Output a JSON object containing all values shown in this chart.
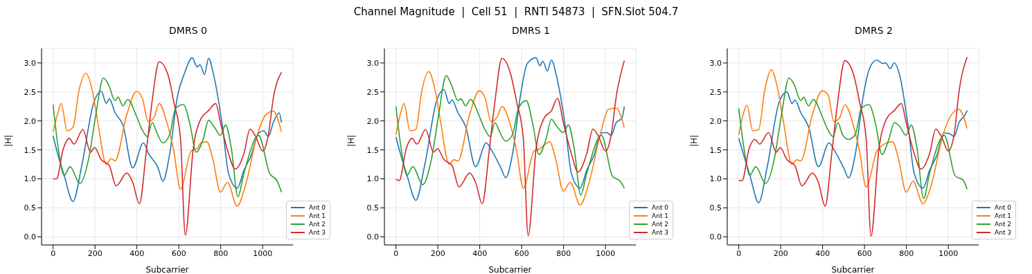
{
  "chart_data": [
    {
      "type": "line",
      "title": "DMRS 0",
      "annotations": [
        "Channel Magnitude  |  Cell 51  |  RNTI 54873  |  SFN.Slot 504.7"
      ],
      "xlabel": "Subcarrier",
      "ylabel": "|H|",
      "xlim": [
        -55,
        1145
      ],
      "xticks": [
        0,
        200,
        400,
        600,
        800,
        1000
      ],
      "ylim": [
        -0.14,
        3.25
      ],
      "yticks": [
        {
          "value": 0,
          "label": "0.0"
        },
        {
          "value": 0.5,
          "label": "0.5"
        },
        {
          "value": 1,
          "label": "1.0"
        },
        {
          "value": 1.5,
          "label": "1.5"
        },
        {
          "value": 2,
          "label": "2.0"
        },
        {
          "value": 2.5,
          "label": "2.5"
        },
        {
          "value": 3,
          "label": "3.0"
        }
      ],
      "grid": true,
      "legend": "bottom right",
      "series": [
        {
          "name": "Ant 0",
          "color": "#1f77b4",
          "x": [
            0,
            25,
            53,
            95,
            137,
            193,
            230,
            254,
            268,
            296,
            333,
            380,
            431,
            455,
            501,
            524,
            557,
            594,
            627,
            664,
            687,
            701,
            723,
            742,
            767,
            809,
            837,
            879,
            911,
            944,
            981,
            1005,
            1028,
            1051,
            1079,
            1090
          ],
          "values": [
            1.74,
            1.39,
            1.06,
            0.61,
            1.23,
            2.3,
            2.51,
            2.3,
            2.38,
            2.14,
            1.93,
            1.19,
            1.62,
            1.44,
            1.19,
            0.96,
            1.44,
            2.43,
            2.82,
            3.09,
            2.93,
            2.97,
            2.8,
            3.08,
            2.78,
            1.89,
            1.1,
            0.84,
            1.15,
            1.39,
            1.79,
            1.83,
            1.73,
            1.97,
            2.14,
            1.97
          ]
        },
        {
          "name": "Ant 1",
          "color": "#ff7f0e",
          "x": [
            0,
            20,
            39,
            67,
            95,
            123,
            156,
            188,
            212,
            254,
            277,
            296,
            351,
            398,
            426,
            454,
            482,
            506,
            548,
            576,
            608,
            659,
            687,
            706,
            734,
            762,
            799,
            832,
            879,
            916,
            977,
            1014,
            1051,
            1090
          ],
          "values": [
            1.81,
            2.1,
            2.3,
            1.83,
            1.89,
            2.51,
            2.82,
            2.51,
            2.01,
            1.25,
            1.35,
            1.31,
            2.1,
            2.51,
            2.39,
            1.99,
            2.06,
            2.3,
            1.91,
            1.48,
            0.82,
            1.48,
            1.52,
            1.62,
            1.64,
            1.35,
            0.77,
            0.94,
            0.53,
            0.86,
            1.79,
            2.1,
            2.17,
            1.81
          ]
        },
        {
          "name": "Ant 2",
          "color": "#2ca02c",
          "x": [
            0,
            25,
            53,
            81,
            128,
            170,
            202,
            240,
            263,
            296,
            310,
            333,
            356,
            398,
            422,
            450,
            473,
            496,
            524,
            557,
            585,
            622,
            654,
            683,
            716,
            742,
            767,
            799,
            823,
            851,
            882,
            911,
            981,
            1033,
            1070,
            1090
          ],
          "values": [
            2.28,
            1.52,
            1.06,
            1.21,
            0.92,
            1.35,
            2.06,
            2.74,
            2.64,
            2.35,
            2.41,
            2.26,
            2.37,
            2.08,
            1.87,
            1.73,
            1.97,
            1.79,
            1.62,
            1.77,
            2.22,
            2.28,
            1.93,
            1.46,
            1.68,
            2.01,
            1.91,
            1.75,
            1.93,
            1.52,
            0.69,
            1.1,
            1.75,
            1.1,
            0.96,
            0.77
          ]
        },
        {
          "name": "Ant 3",
          "color": "#d62728",
          "x": [
            0,
            16,
            49,
            77,
            100,
            142,
            179,
            198,
            230,
            268,
            301,
            352,
            380,
            412,
            445,
            473,
            506,
            548,
            576,
            608,
            631,
            669,
            706,
            743,
            776,
            799,
            837,
            869,
            911,
            940,
            967,
            1000,
            1028,
            1051,
            1090
          ],
          "values": [
            1.0,
            1.0,
            1.52,
            1.7,
            1.6,
            1.85,
            1.46,
            1.54,
            1.33,
            1.23,
            0.88,
            1.1,
            0.94,
            0.57,
            1.48,
            2.35,
            3.02,
            2.8,
            2.33,
            1.7,
            0.03,
            1.52,
            2.04,
            2.18,
            2.3,
            1.97,
            1.44,
            1.17,
            1.44,
            1.86,
            1.73,
            1.48,
            1.77,
            2.39,
            2.84
          ]
        }
      ]
    },
    {
      "type": "line",
      "title": "DMRS 1",
      "xlabel": "Subcarrier",
      "ylabel": "|H|",
      "xlim": [
        -55,
        1145
      ],
      "xticks": [
        0,
        200,
        400,
        600,
        800,
        1000
      ],
      "ylim": [
        -0.14,
        3.25
      ],
      "yticks": [
        {
          "value": 0,
          "label": "0.0"
        },
        {
          "value": 0.5,
          "label": "0.5"
        },
        {
          "value": 1,
          "label": "1.0"
        },
        {
          "value": 1.5,
          "label": "1.5"
        },
        {
          "value": 2,
          "label": "2.0"
        },
        {
          "value": 2.5,
          "label": "2.5"
        },
        {
          "value": 3,
          "label": "3.0"
        }
      ],
      "grid": true,
      "legend": "bottom right",
      "series": [
        {
          "name": "Ant 0",
          "color": "#1f77b4",
          "x": [
            0,
            25,
            53,
            95,
            137,
            193,
            230,
            254,
            268,
            296,
            333,
            380,
            431,
            455,
            501,
            524,
            557,
            594,
            627,
            669,
            687,
            701,
            723,
            742,
            767,
            809,
            837,
            879,
            911,
            944,
            981,
            1005,
            1028,
            1051,
            1079,
            1090
          ],
          "values": [
            1.72,
            1.39,
            1.06,
            0.63,
            1.23,
            2.33,
            2.54,
            2.3,
            2.36,
            2.14,
            1.9,
            1.21,
            1.62,
            1.5,
            1.19,
            1.02,
            1.44,
            2.43,
            2.99,
            3.09,
            2.95,
            3.03,
            2.86,
            3.05,
            2.76,
            1.89,
            1.1,
            0.84,
            1.15,
            1.39,
            1.79,
            1.8,
            1.75,
            1.97,
            2.05,
            2.25
          ]
        },
        {
          "name": "Ant 1",
          "color": "#ff7f0e",
          "x": [
            0,
            20,
            39,
            67,
            95,
            123,
            156,
            188,
            212,
            254,
            277,
            296,
            351,
            398,
            426,
            454,
            482,
            506,
            548,
            576,
            608,
            659,
            687,
            706,
            734,
            762,
            799,
            832,
            879,
            916,
            977,
            1014,
            1051,
            1090
          ],
          "values": [
            1.76,
            2.1,
            2.3,
            1.83,
            1.85,
            2.51,
            2.85,
            2.51,
            2.01,
            1.25,
            1.33,
            1.31,
            2.1,
            2.52,
            2.39,
            1.99,
            2.06,
            2.25,
            1.91,
            1.48,
            0.84,
            1.48,
            1.52,
            1.58,
            1.64,
            1.35,
            0.79,
            0.94,
            0.55,
            0.86,
            1.79,
            2.2,
            2.22,
            1.89
          ]
        },
        {
          "name": "Ant 2",
          "color": "#2ca02c",
          "x": [
            0,
            25,
            53,
            81,
            128,
            170,
            202,
            240,
            263,
            296,
            310,
            333,
            356,
            398,
            422,
            450,
            473,
            496,
            524,
            557,
            585,
            622,
            654,
            683,
            716,
            742,
            767,
            799,
            823,
            851,
            882,
            911,
            981,
            1033,
            1070,
            1090
          ],
          "values": [
            2.25,
            1.52,
            1.06,
            1.21,
            0.9,
            1.35,
            2.06,
            2.78,
            2.64,
            2.35,
            2.38,
            2.26,
            2.37,
            2.08,
            1.87,
            1.73,
            1.97,
            1.8,
            1.65,
            1.77,
            2.22,
            2.35,
            1.93,
            1.42,
            1.68,
            2.03,
            1.91,
            1.8,
            1.93,
            1.52,
            0.72,
            1.1,
            1.75,
            1.05,
            0.96,
            0.84
          ]
        },
        {
          "name": "Ant 3",
          "color": "#d62728",
          "x": [
            0,
            16,
            49,
            77,
            100,
            142,
            179,
            198,
            230,
            268,
            301,
            352,
            380,
            412,
            445,
            473,
            506,
            548,
            576,
            608,
            631,
            669,
            706,
            743,
            771,
            799,
            837,
            869,
            911,
            940,
            967,
            1000,
            1028,
            1051,
            1090
          ],
          "values": [
            0.99,
            0.97,
            1.52,
            1.7,
            1.6,
            1.85,
            1.46,
            1.52,
            1.33,
            1.23,
            0.86,
            1.1,
            0.94,
            0.57,
            1.48,
            2.35,
            3.08,
            2.8,
            2.33,
            1.7,
            0.02,
            1.52,
            2.04,
            2.18,
            2.39,
            1.97,
            1.44,
            1.12,
            1.44,
            1.86,
            1.73,
            1.48,
            1.77,
            2.41,
            3.04
          ]
        }
      ]
    },
    {
      "type": "line",
      "title": "DMRS 2",
      "xlabel": "Subcarrier",
      "ylabel": "|H|",
      "xlim": [
        -55,
        1145
      ],
      "xticks": [
        0,
        200,
        400,
        600,
        800,
        1000
      ],
      "ylim": [
        -0.14,
        3.25
      ],
      "yticks": [
        {
          "value": 0,
          "label": "0.0"
        },
        {
          "value": 0.5,
          "label": "0.5"
        },
        {
          "value": 1,
          "label": "1.0"
        },
        {
          "value": 1.5,
          "label": "1.5"
        },
        {
          "value": 2,
          "label": "2.0"
        },
        {
          "value": 2.5,
          "label": "2.5"
        },
        {
          "value": 3,
          "label": "3.0"
        }
      ],
      "grid": true,
      "legend": "bottom right",
      "series": [
        {
          "name": "Ant 0",
          "color": "#1f77b4",
          "x": [
            0,
            25,
            53,
            95,
            137,
            193,
            230,
            254,
            268,
            296,
            333,
            380,
            431,
            455,
            501,
            524,
            557,
            594,
            627,
            659,
            687,
            701,
            723,
            742,
            767,
            809,
            837,
            879,
            911,
            944,
            981,
            1005,
            1028,
            1051,
            1079,
            1090
          ],
          "values": [
            1.7,
            1.39,
            1.06,
            0.59,
            1.23,
            2.33,
            2.5,
            2.3,
            2.36,
            2.14,
            1.9,
            1.21,
            1.62,
            1.5,
            1.19,
            1.02,
            1.44,
            2.43,
            2.93,
            3.05,
            2.99,
            3.0,
            2.9,
            3.0,
            2.8,
            1.89,
            1.1,
            0.84,
            1.15,
            1.39,
            1.79,
            1.78,
            1.73,
            1.97,
            2.1,
            2.18
          ]
        },
        {
          "name": "Ant 1",
          "color": "#ff7f0e",
          "x": [
            0,
            20,
            39,
            67,
            95,
            123,
            156,
            188,
            212,
            254,
            277,
            296,
            351,
            398,
            426,
            454,
            482,
            506,
            548,
            576,
            608,
            659,
            687,
            706,
            734,
            762,
            799,
            832,
            879,
            916,
            977,
            1014,
            1051,
            1090
          ],
          "values": [
            1.76,
            2.1,
            2.27,
            1.83,
            1.85,
            2.51,
            2.88,
            2.51,
            2.01,
            1.25,
            1.33,
            1.31,
            2.1,
            2.52,
            2.45,
            1.99,
            2.06,
            2.28,
            1.91,
            1.48,
            0.86,
            1.48,
            1.58,
            1.62,
            1.64,
            1.35,
            0.77,
            0.96,
            0.57,
            0.86,
            1.79,
            2.1,
            2.2,
            1.87
          ]
        },
        {
          "name": "Ant 2",
          "color": "#2ca02c",
          "x": [
            0,
            25,
            53,
            81,
            128,
            170,
            202,
            240,
            263,
            296,
            310,
            333,
            356,
            398,
            422,
            450,
            473,
            496,
            524,
            557,
            585,
            622,
            654,
            683,
            716,
            742,
            767,
            799,
            823,
            851,
            882,
            911,
            981,
            1033,
            1070,
            1090
          ],
          "values": [
            2.22,
            1.52,
            1.06,
            1.21,
            0.92,
            1.35,
            2.06,
            2.74,
            2.64,
            2.35,
            2.41,
            2.26,
            2.37,
            2.08,
            1.87,
            1.73,
            1.97,
            1.76,
            1.68,
            1.77,
            2.22,
            2.28,
            1.93,
            1.42,
            1.68,
            1.97,
            1.91,
            1.75,
            1.93,
            1.52,
            0.66,
            1.1,
            1.75,
            1.05,
            0.98,
            0.82
          ]
        },
        {
          "name": "Ant 3",
          "color": "#d62728",
          "x": [
            0,
            16,
            49,
            77,
            100,
            142,
            179,
            198,
            230,
            268,
            301,
            352,
            380,
            412,
            445,
            473,
            506,
            548,
            576,
            608,
            631,
            669,
            706,
            743,
            776,
            799,
            837,
            869,
            911,
            940,
            967,
            1000,
            1028,
            1051,
            1090
          ],
          "values": [
            0.97,
            0.97,
            1.52,
            1.68,
            1.6,
            1.8,
            1.46,
            1.54,
            1.33,
            1.23,
            0.88,
            1.1,
            0.94,
            0.53,
            1.48,
            2.35,
            3.04,
            2.8,
            2.33,
            1.7,
            0.01,
            1.52,
            2.04,
            2.18,
            2.3,
            1.97,
            1.44,
            1.17,
            1.44,
            1.86,
            1.73,
            1.48,
            1.77,
            2.5,
            3.1
          ]
        }
      ]
    }
  ]
}
